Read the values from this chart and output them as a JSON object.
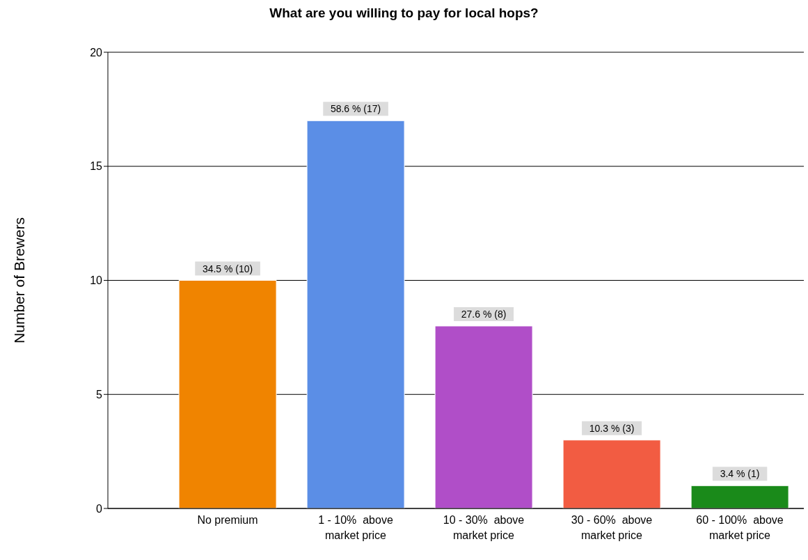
{
  "chart_data": {
    "type": "bar",
    "title": "What are you willing to pay for local hops?",
    "ylabel": "Number of Brewers",
    "categories": [
      "No premium",
      "1 - 10%  above\nmarket price",
      "10 - 30%  above\nmarket price",
      "30 - 60%  above\nmarket price",
      "60 - 100%  above\nmarket price"
    ],
    "values": [
      10,
      17,
      8,
      3,
      1
    ],
    "colors": [
      "#f08400",
      "#5b8ee6",
      "#b04ec8",
      "#f25c42",
      "#1a8a1a"
    ],
    "value_labels": [
      "34.5 % (10)",
      "58.6 % (17)",
      "27.6 % (8)",
      "10.3 % (3)",
      "3.4 % (1)"
    ],
    "ylim": [
      0,
      20
    ],
    "yticks": [
      0,
      5,
      10,
      15,
      20
    ],
    "grid": "y"
  }
}
